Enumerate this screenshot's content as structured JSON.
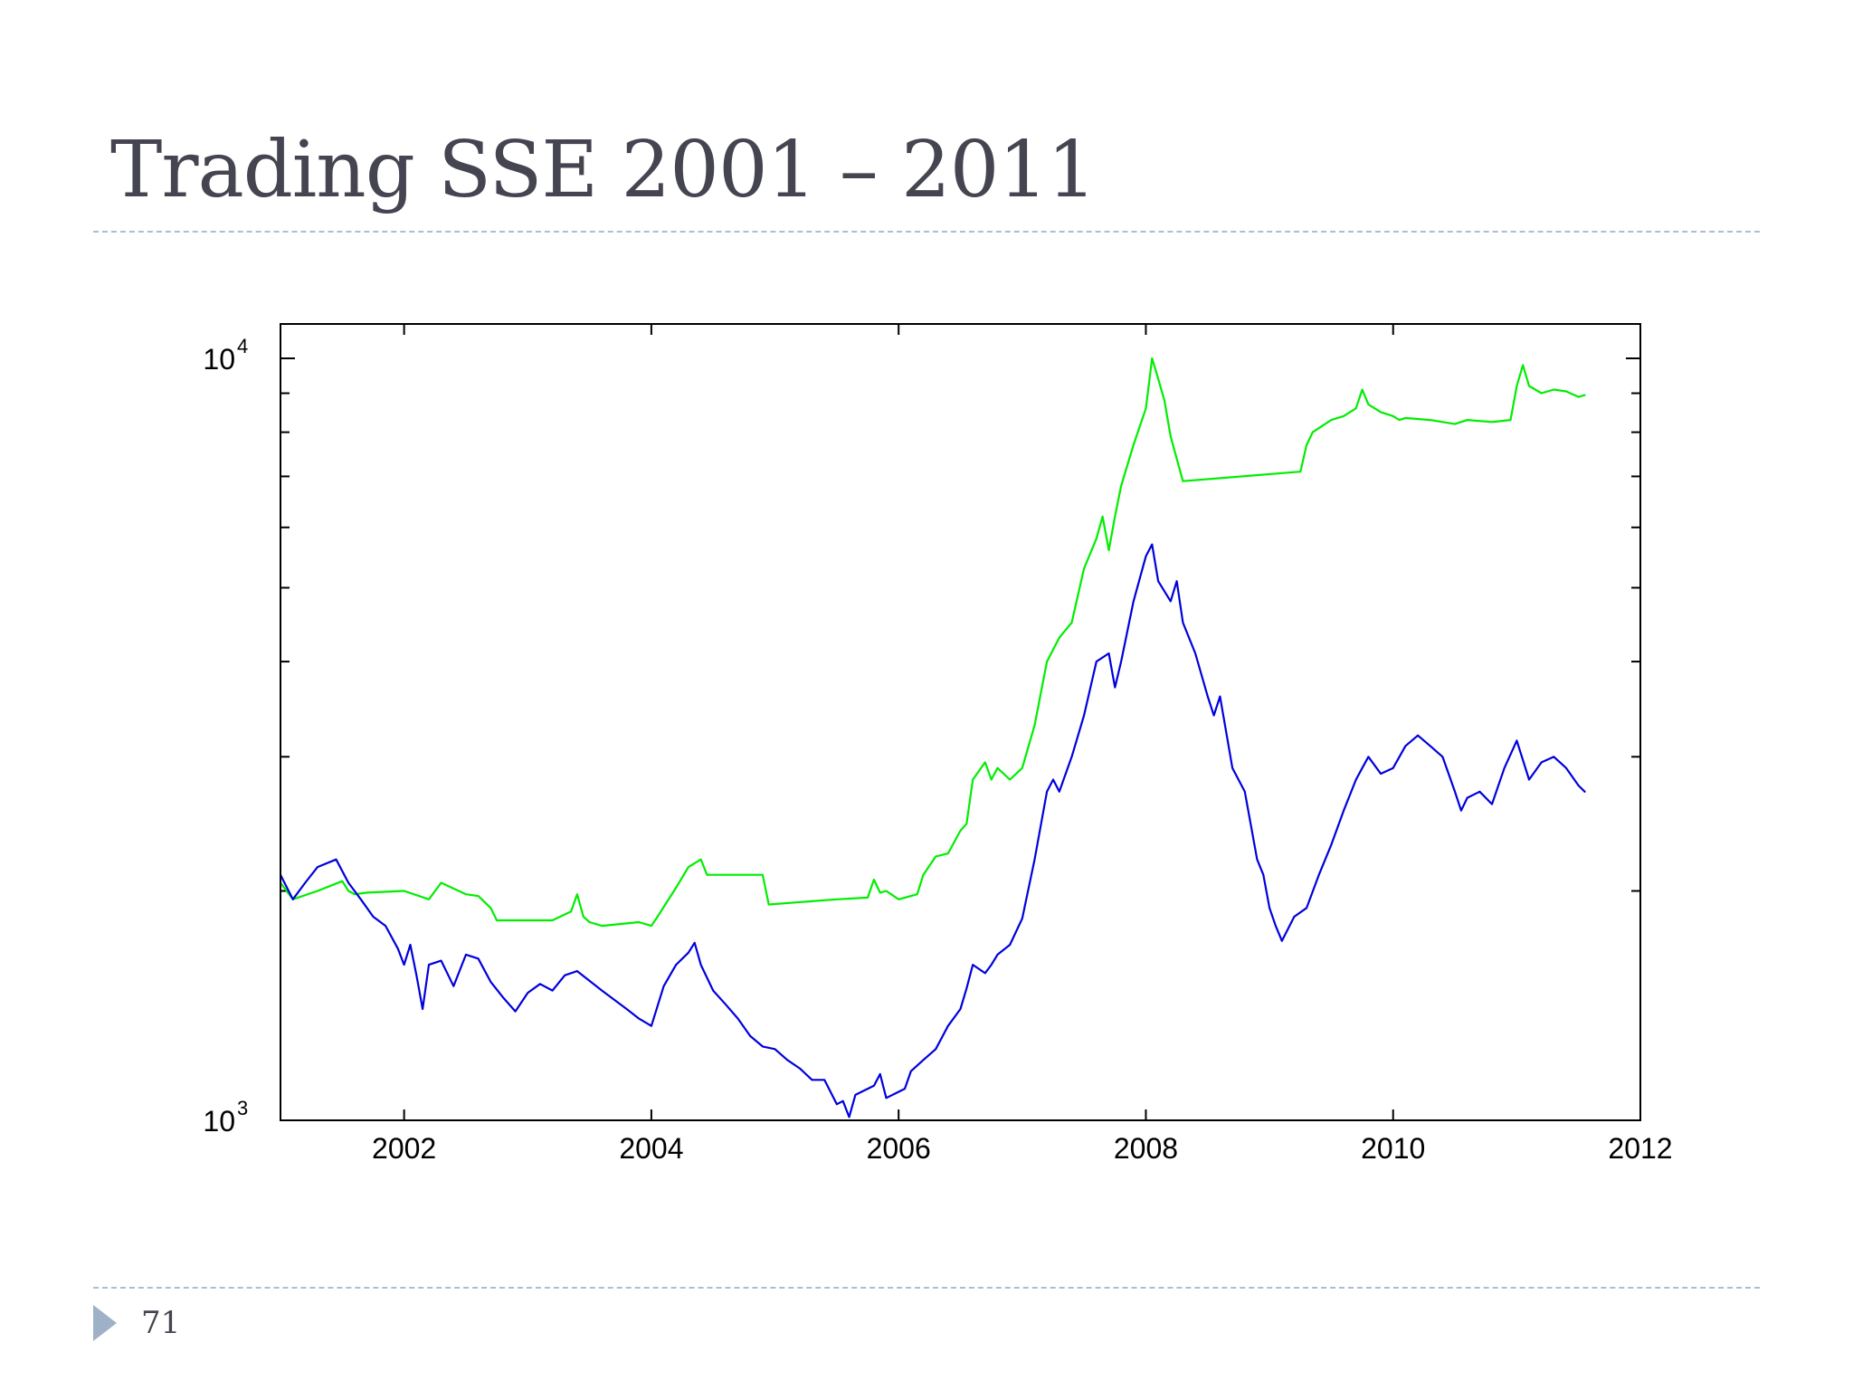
{
  "slide": {
    "title": "Trading SSE 2001 – 2011",
    "page_number": "71"
  },
  "colors": {
    "title_text": "#454551",
    "rule": "#aebdd0",
    "accent_arrow": "#9fb1c6",
    "series_strategy": "#00ee00",
    "series_index": "#0000dd"
  },
  "chart_data": {
    "type": "line",
    "title": "",
    "xlabel": "",
    "ylabel": "",
    "xlim": [
      2001,
      2012
    ],
    "ylim": [
      1000,
      10000
    ],
    "y_scale": "log",
    "grid": false,
    "legend": "none",
    "x_ticks": [
      2002,
      2004,
      2006,
      2008,
      2010,
      2012
    ],
    "x_tick_labels": [
      "2002",
      "2004",
      "2006",
      "2008",
      "2010",
      "2012"
    ],
    "y_ticks": [
      1000,
      10000
    ],
    "y_tick_labels": [
      {
        "base": "10",
        "exp": "3"
      },
      {
        "base": "10",
        "exp": "4"
      }
    ],
    "y_minor_ticks": [
      2000,
      3000,
      4000,
      5000,
      6000,
      7000,
      8000,
      9000
    ],
    "series": [
      {
        "color": "#00ee00",
        "x": [
          2001.0,
          2001.1,
          2001.3,
          2001.5,
          2001.55,
          2001.6,
          2001.7,
          2002.0,
          2002.2,
          2002.3,
          2002.5,
          2002.6,
          2002.7,
          2002.75,
          2003.2,
          2003.35,
          2003.4,
          2003.45,
          2003.5,
          2003.6,
          2003.9,
          2004.0,
          2004.05,
          2004.2,
          2004.3,
          2004.4,
          2004.45,
          2004.5,
          2004.9,
          2004.95,
          2005.5,
          2005.75,
          2005.8,
          2005.85,
          2005.9,
          2006.0,
          2006.15,
          2006.2,
          2006.3,
          2006.4,
          2006.5,
          2006.55,
          2006.6,
          2006.7,
          2006.75,
          2006.8,
          2006.9,
          2007.0,
          2007.1,
          2007.2,
          2007.3,
          2007.4,
          2007.5,
          2007.6,
          2007.65,
          2007.7,
          2007.75,
          2007.8,
          2007.9,
          2008.0,
          2008.05,
          2008.1,
          2008.15,
          2008.2,
          2008.3,
          2009.25,
          2009.3,
          2009.35,
          2009.4,
          2009.5,
          2009.6,
          2009.7,
          2009.75,
          2009.8,
          2009.9,
          2010.0,
          2010.05,
          2010.1,
          2010.3,
          2010.5,
          2010.6,
          2010.8,
          2010.95,
          2011.0,
          2011.05,
          2011.1,
          2011.2,
          2011.3,
          2011.4,
          2011.5,
          2011.55
        ],
        "y": [
          2050,
          1950,
          2000,
          2060,
          2000,
          1980,
          1990,
          2000,
          1950,
          2050,
          1980,
          1970,
          1900,
          1830,
          1830,
          1880,
          1980,
          1850,
          1820,
          1800,
          1820,
          1800,
          1850,
          2020,
          2150,
          2200,
          2100,
          2100,
          2100,
          1920,
          1950,
          1960,
          2070,
          1990,
          2000,
          1950,
          1980,
          2100,
          2220,
          2240,
          2400,
          2450,
          2800,
          2950,
          2800,
          2900,
          2800,
          2900,
          3300,
          4000,
          4300,
          4500,
          5300,
          5800,
          6200,
          5600,
          6200,
          6800,
          7700,
          8600,
          10000,
          9400,
          8800,
          7900,
          6900,
          7100,
          7700,
          8000,
          8100,
          8300,
          8400,
          8600,
          9100,
          8700,
          8500,
          8400,
          8300,
          8350,
          8300,
          8200,
          8300,
          8250,
          8300,
          9200,
          9800,
          9200,
          9000,
          9100,
          9050,
          8900,
          8950
        ]
      },
      {
        "color": "#0000dd",
        "x": [
          2001.0,
          2001.1,
          2001.2,
          2001.3,
          2001.45,
          2001.55,
          2001.65,
          2001.75,
          2001.85,
          2001.95,
          2002.0,
          2002.05,
          2002.1,
          2002.15,
          2002.2,
          2002.3,
          2002.4,
          2002.5,
          2002.6,
          2002.7,
          2002.8,
          2002.9,
          2003.0,
          2003.1,
          2003.2,
          2003.3,
          2003.4,
          2003.6,
          2003.8,
          2003.9,
          2004.0,
          2004.1,
          2004.2,
          2004.3,
          2004.35,
          2004.4,
          2004.5,
          2004.6,
          2004.7,
          2004.8,
          2004.9,
          2005.0,
          2005.1,
          2005.2,
          2005.3,
          2005.4,
          2005.5,
          2005.55,
          2005.6,
          2005.65,
          2005.7,
          2005.8,
          2005.85,
          2005.9,
          2006.0,
          2006.05,
          2006.1,
          2006.2,
          2006.3,
          2006.4,
          2006.5,
          2006.55,
          2006.6,
          2006.7,
          2006.75,
          2006.8,
          2006.9,
          2007.0,
          2007.1,
          2007.2,
          2007.25,
          2007.3,
          2007.4,
          2007.5,
          2007.6,
          2007.7,
          2007.75,
          2007.8,
          2007.9,
          2008.0,
          2008.05,
          2008.1,
          2008.2,
          2008.25,
          2008.3,
          2008.4,
          2008.5,
          2008.55,
          2008.6,
          2008.7,
          2008.8,
          2008.9,
          2008.95,
          2009.0,
          2009.05,
          2009.1,
          2009.2,
          2009.3,
          2009.4,
          2009.5,
          2009.6,
          2009.7,
          2009.75,
          2009.8,
          2009.9,
          2010.0,
          2010.1,
          2010.2,
          2010.3,
          2010.4,
          2010.5,
          2010.55,
          2010.6,
          2010.7,
          2010.8,
          2010.9,
          2011.0,
          2011.1,
          2011.2,
          2011.3,
          2011.4,
          2011.5,
          2011.55
        ],
        "y": [
          2100,
          1950,
          2050,
          2150,
          2200,
          2050,
          1950,
          1850,
          1800,
          1680,
          1600,
          1700,
          1550,
          1400,
          1600,
          1620,
          1500,
          1650,
          1630,
          1520,
          1450,
          1390,
          1470,
          1510,
          1480,
          1550,
          1570,
          1480,
          1400,
          1360,
          1330,
          1500,
          1600,
          1660,
          1710,
          1600,
          1480,
          1420,
          1360,
          1290,
          1250,
          1240,
          1200,
          1170,
          1130,
          1130,
          1050,
          1060,
          1010,
          1080,
          1090,
          1110,
          1150,
          1070,
          1090,
          1100,
          1160,
          1200,
          1240,
          1330,
          1400,
          1490,
          1600,
          1560,
          1600,
          1650,
          1700,
          1840,
          2200,
          2700,
          2800,
          2700,
          3000,
          3400,
          4000,
          4100,
          3700,
          4000,
          4800,
          5500,
          5700,
          5100,
          4800,
          5100,
          4500,
          4100,
          3600,
          3400,
          3600,
          2900,
          2700,
          2200,
          2100,
          1900,
          1800,
          1720,
          1850,
          1900,
          2100,
          2300,
          2550,
          2800,
          2900,
          3000,
          2850,
          2900,
          3100,
          3200,
          3100,
          3000,
          2700,
          2550,
          2650,
          2700,
          2600,
          2900,
          3150,
          2800,
          2950,
          3000,
          2900,
          2750,
          2700
        ]
      }
    ]
  }
}
